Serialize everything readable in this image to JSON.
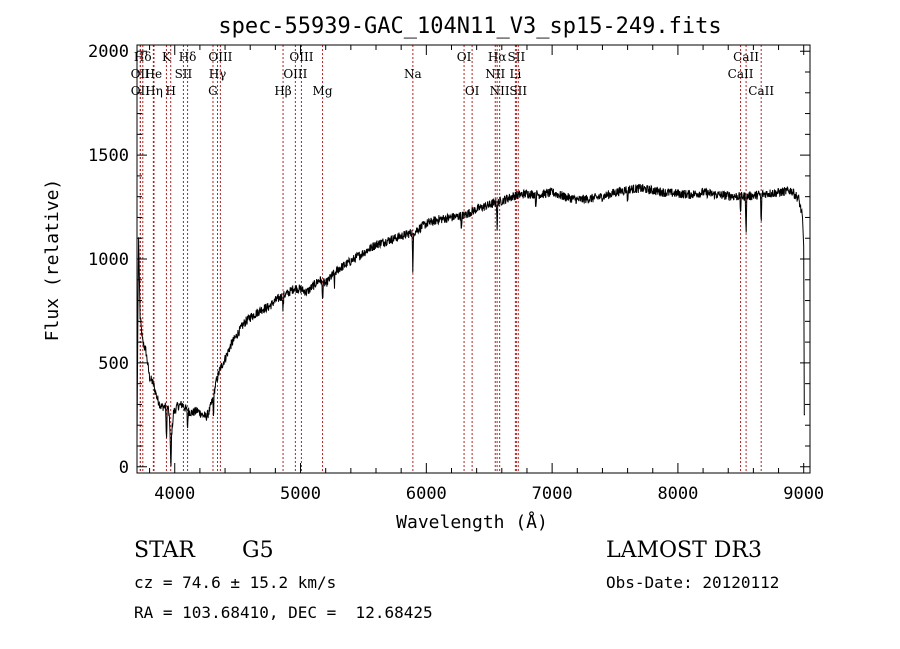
{
  "chart_data": {
    "type": "line",
    "title": "spec-55939-GAC_104N11_V3_sp15-249.fits",
    "xlabel": "Wavelength (Å)",
    "ylabel": "Flux (relative)",
    "xlim": [
      3700,
      9050
    ],
    "ylim": [
      -30,
      2030
    ],
    "xticks": [
      4000,
      5000,
      6000,
      7000,
      8000,
      9000
    ],
    "yticks": [
      0,
      500,
      1000,
      1500,
      2000
    ],
    "grid": false,
    "line_color": "#000000",
    "marker_color": "#b22222",
    "series": [
      {
        "name": "spectrum",
        "anchors": [
          [
            3700,
            120
          ],
          [
            3712,
            1120
          ],
          [
            3725,
            720
          ],
          [
            3745,
            600
          ],
          [
            3770,
            560
          ],
          [
            3800,
            430
          ],
          [
            3830,
            400
          ],
          [
            3860,
            330
          ],
          [
            3890,
            290
          ],
          [
            3920,
            290
          ],
          [
            3950,
            280
          ],
          [
            3970,
            120
          ],
          [
            3990,
            260
          ],
          [
            4020,
            290
          ],
          [
            4060,
            300
          ],
          [
            4100,
            270
          ],
          [
            4140,
            260
          ],
          [
            4180,
            270
          ],
          [
            4220,
            250
          ],
          [
            4250,
            240
          ],
          [
            4270,
            260
          ],
          [
            4300,
            320
          ],
          [
            4330,
            410
          ],
          [
            4360,
            470
          ],
          [
            4400,
            520
          ],
          [
            4450,
            590
          ],
          [
            4500,
            640
          ],
          [
            4550,
            690
          ],
          [
            4600,
            720
          ],
          [
            4650,
            740
          ],
          [
            4700,
            760
          ],
          [
            4750,
            770
          ],
          [
            4800,
            800
          ],
          [
            4850,
            820
          ],
          [
            4900,
            835
          ],
          [
            4950,
            860
          ],
          [
            5000,
            855
          ],
          [
            5050,
            840
          ],
          [
            5100,
            870
          ],
          [
            5150,
            900
          ],
          [
            5200,
            880
          ],
          [
            5250,
            920
          ],
          [
            5300,
            950
          ],
          [
            5400,
            990
          ],
          [
            5500,
            1030
          ],
          [
            5600,
            1070
          ],
          [
            5700,
            1090
          ],
          [
            5800,
            1110
          ],
          [
            5900,
            1130
          ],
          [
            6000,
            1170
          ],
          [
            6100,
            1190
          ],
          [
            6200,
            1200
          ],
          [
            6300,
            1210
          ],
          [
            6400,
            1240
          ],
          [
            6500,
            1260
          ],
          [
            6600,
            1280
          ],
          [
            6700,
            1305
          ],
          [
            6800,
            1315
          ],
          [
            6900,
            1310
          ],
          [
            7000,
            1320
          ],
          [
            7100,
            1300
          ],
          [
            7200,
            1285
          ],
          [
            7300,
            1290
          ],
          [
            7400,
            1300
          ],
          [
            7500,
            1320
          ],
          [
            7600,
            1335
          ],
          [
            7700,
            1340
          ],
          [
            7800,
            1330
          ],
          [
            7900,
            1320
          ],
          [
            8000,
            1315
          ],
          [
            8100,
            1310
          ],
          [
            8200,
            1320
          ],
          [
            8300,
            1310
          ],
          [
            8400,
            1305
          ],
          [
            8500,
            1300
          ],
          [
            8600,
            1305
          ],
          [
            8700,
            1315
          ],
          [
            8800,
            1320
          ],
          [
            8900,
            1330
          ],
          [
            8960,
            1290
          ],
          [
            8990,
            1200
          ],
          [
            9000,
            1060
          ],
          [
            9005,
            250
          ],
          [
            9010,
            250
          ]
        ],
        "absorption_features": [
          [
            3934,
            180
          ],
          [
            3969,
            160
          ],
          [
            4102,
            90
          ],
          [
            4308,
            110
          ],
          [
            4861,
            80
          ],
          [
            5175,
            90
          ],
          [
            5270,
            60
          ],
          [
            5893,
            220
          ],
          [
            6280,
            70
          ],
          [
            6563,
            130
          ],
          [
            6870,
            60
          ],
          [
            7600,
            70
          ],
          [
            8498,
            80
          ],
          [
            8542,
            170
          ],
          [
            8662,
            150
          ]
        ],
        "noise_amplitude": 22
      }
    ],
    "lines": [
      {
        "label": "Hδ",
        "x": 3746,
        "row": 1
      },
      {
        "label": "OII",
        "x": 3726,
        "row": 2
      },
      {
        "label": "OII",
        "x": 3727,
        "row": 3
      },
      {
        "label": "He",
        "x": 3830,
        "row": 2
      },
      {
        "label": "Hη",
        "x": 3835,
        "row": 3
      },
      {
        "label": "K",
        "x": 3934,
        "row": 1
      },
      {
        "label": "SII",
        "x": 4069,
        "row": 2
      },
      {
        "label": "H",
        "x": 3968,
        "row": 3
      },
      {
        "label": "Hδ",
        "x": 4102,
        "row": 1
      },
      {
        "label": "OIII",
        "x": 4363,
        "row": 1
      },
      {
        "label": "Hγ",
        "x": 4340,
        "row": 2
      },
      {
        "label": "G",
        "x": 4304,
        "row": 3
      },
      {
        "label": "OIII",
        "x": 5007,
        "row": 1
      },
      {
        "label": "OIII",
        "x": 4959,
        "row": 2
      },
      {
        "label": "Hβ",
        "x": 4861,
        "row": 3
      },
      {
        "label": "Mg",
        "x": 5175,
        "row": 3
      },
      {
        "label": "Na",
        "x": 5893,
        "row": 2
      },
      {
        "label": "OI",
        "x": 6300,
        "row": 1
      },
      {
        "label": "OI",
        "x": 6364,
        "row": 3
      },
      {
        "label": "Hα",
        "x": 6563,
        "row": 1
      },
      {
        "label": "NII",
        "x": 6548,
        "row": 2
      },
      {
        "label": "NII",
        "x": 6583,
        "row": 3
      },
      {
        "label": "SII",
        "x": 6716,
        "row": 1
      },
      {
        "label": "Li",
        "x": 6708,
        "row": 2
      },
      {
        "label": "SII",
        "x": 6731,
        "row": 3
      },
      {
        "label": "CaII",
        "x": 8542,
        "row": 1
      },
      {
        "label": "CaII",
        "x": 8498,
        "row": 2
      },
      {
        "label": "CaII",
        "x": 8662,
        "row": 3
      }
    ]
  },
  "info": {
    "class_label": "STAR",
    "subclass": "G5",
    "survey": "LAMOST DR3",
    "cz": "cz = 74.6 ± 15.2 km/s",
    "obs_date": "Obs-Date: 20120112",
    "coords": "RA = 103.68410, DEC =  12.68425"
  }
}
